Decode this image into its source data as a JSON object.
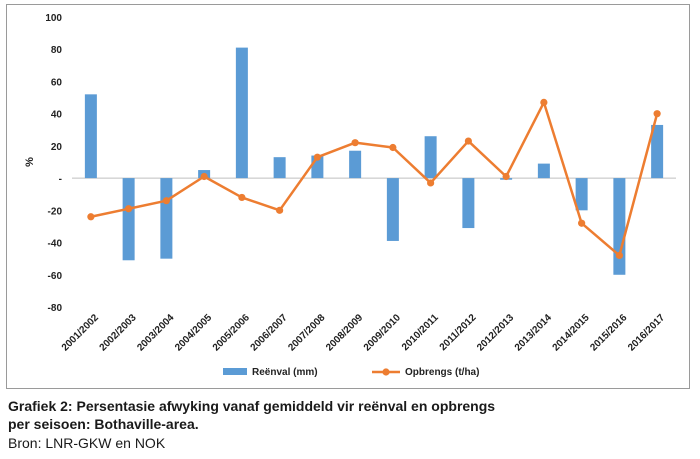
{
  "chart_data": {
    "type": "bar+line",
    "categories": [
      "2001/2002",
      "2002/2003",
      "2003/2004",
      "2004/2005",
      "2005/2006",
      "2006/2007",
      "2007/2008",
      "2008/2009",
      "2009/2010",
      "2010/2011",
      "2011/2012",
      "2012/2013",
      "2013/2014",
      "2014/2015",
      "2015/2016",
      "2016/2017"
    ],
    "series": [
      {
        "name": "Reënval (mm)",
        "kind": "bar",
        "color": "#5b9bd5",
        "values": [
          52,
          -51,
          -50,
          5,
          81,
          13,
          14,
          17,
          -39,
          26,
          -31,
          -1,
          9,
          -20,
          -60,
          33
        ]
      },
      {
        "name": "Opbrengs (t/ha)",
        "kind": "line",
        "color": "#ed7d31",
        "values": [
          -24,
          -19,
          -14,
          1,
          -12,
          -20,
          13,
          22,
          19,
          -3,
          23,
          1,
          47,
          -28,
          -48,
          40
        ]
      }
    ],
    "ylabel": "%",
    "ylim": [
      -80,
      100
    ],
    "yticks": [
      100,
      80,
      60,
      40,
      20,
      0,
      -20,
      -40,
      -60,
      -80
    ],
    "ytick_labels": [
      "100",
      "80",
      "60",
      "40",
      "20",
      "-",
      "-20",
      "-40",
      "-60",
      "-80"
    ],
    "grid": false,
    "legend": "bottom"
  },
  "caption": {
    "line1": "Grafiek 2: Persentasie afwyking vanaf gemiddeld vir reënval en opbrengs",
    "line2": "per seisoen: Bothaville-area.",
    "line3": "Bron: LNR-GKW en NOK"
  }
}
